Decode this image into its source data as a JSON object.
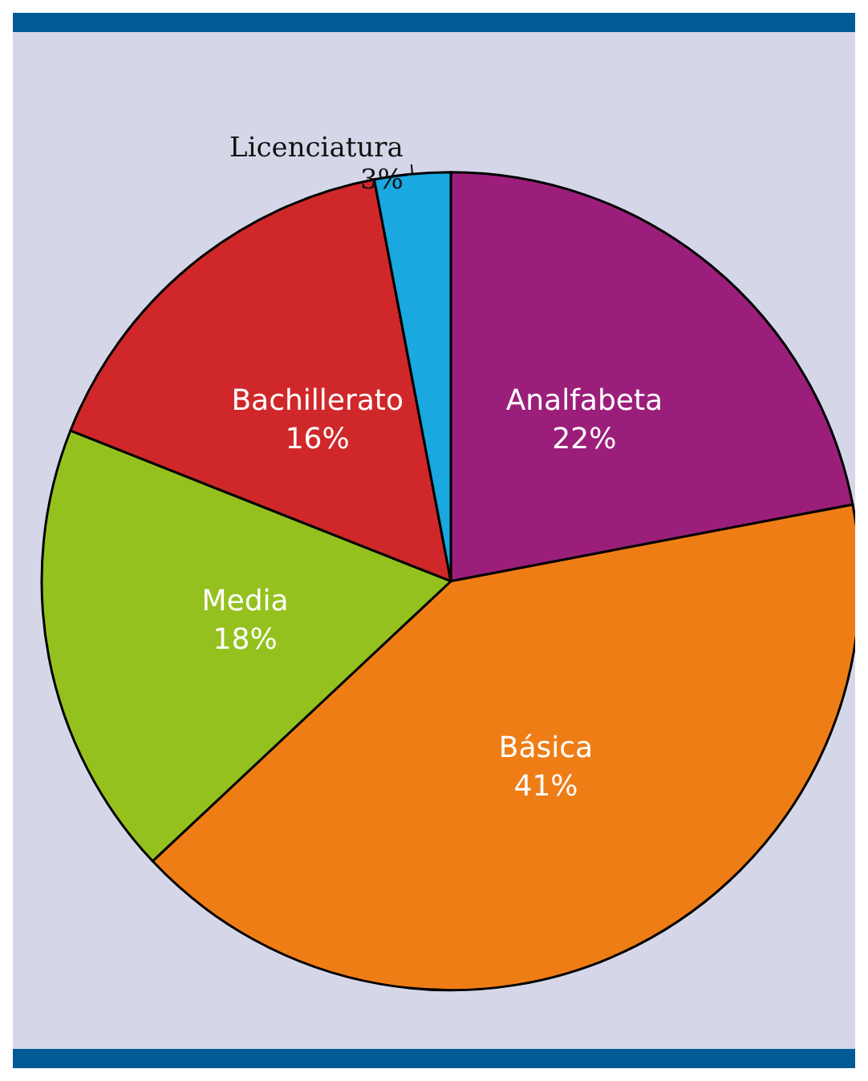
{
  "chart_data": {
    "type": "pie",
    "categories": [
      "Analfabeta",
      "Básica",
      "Media",
      "Bachillerato",
      "Licenciatura"
    ],
    "values": [
      22,
      41,
      18,
      16,
      3
    ],
    "colors": [
      "#9b1f7a",
      "#ef7d16",
      "#95c11f",
      "#d0282a",
      "#1aa8e0"
    ],
    "value_labels": [
      "22%",
      "41%",
      "18%",
      "16%",
      "3%"
    ],
    "legend": false
  }
}
